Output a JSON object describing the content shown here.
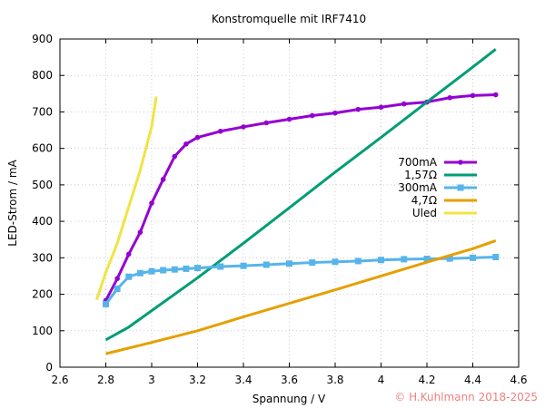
{
  "chart_data": {
    "type": "line",
    "title": "Konstromquelle mit IRF7410",
    "xlabel": "Spannung / V",
    "ylabel": "LED-Strom / mA",
    "xlim": [
      2.6,
      4.6
    ],
    "ylim": [
      0,
      900
    ],
    "xticks": [
      "2.6",
      "2.8",
      "3",
      "3.2",
      "3.4",
      "3.6",
      "3.8",
      "4",
      "4.2",
      "4.4",
      "4.6"
    ],
    "yticks": [
      "0",
      "100",
      "200",
      "300",
      "400",
      "500",
      "600",
      "700",
      "800",
      "900"
    ],
    "grid": true,
    "legend_position": "right",
    "series": [
      {
        "name": "700mA",
        "color": "#9400d3",
        "marker": "circle",
        "x": [
          2.8,
          2.85,
          2.9,
          2.95,
          3.0,
          3.05,
          3.1,
          3.15,
          3.2,
          3.3,
          3.4,
          3.5,
          3.6,
          3.7,
          3.8,
          3.9,
          4.0,
          4.1,
          4.2,
          4.3,
          4.4,
          4.5
        ],
        "y": [
          183,
          243,
          310,
          370,
          450,
          515,
          578,
          612,
          630,
          647,
          659,
          670,
          680,
          690,
          697,
          707,
          713,
          722,
          727,
          739,
          745,
          747
        ]
      },
      {
        "name": "1,57Ω",
        "color": "#009e73",
        "marker": "none",
        "x": [
          2.8,
          2.9,
          3.0,
          3.2,
          3.4,
          3.6,
          3.8,
          4.0,
          4.2,
          4.4,
          4.5
        ],
        "y": [
          75,
          110,
          155,
          245,
          340,
          437,
          535,
          630,
          727,
          823,
          872
        ]
      },
      {
        "name": "300mA",
        "color": "#56b4e9",
        "marker": "square",
        "x": [
          2.8,
          2.85,
          2.9,
          2.95,
          3.0,
          3.05,
          3.1,
          3.15,
          3.2,
          3.3,
          3.4,
          3.5,
          3.6,
          3.7,
          3.8,
          3.9,
          4.0,
          4.1,
          4.2,
          4.3,
          4.4,
          4.5
        ],
        "y": [
          173,
          215,
          248,
          258,
          263,
          266,
          268,
          270,
          272,
          276,
          278,
          281,
          284,
          287,
          289,
          291,
          294,
          296,
          297,
          298,
          300,
          302
        ]
      },
      {
        "name": "4,7Ω",
        "color": "#e69f00",
        "marker": "none",
        "x": [
          2.8,
          3.0,
          3.2,
          3.4,
          3.6,
          3.8,
          4.0,
          4.2,
          4.4,
          4.5
        ],
        "y": [
          37,
          68,
          100,
          138,
          175,
          212,
          250,
          288,
          325,
          347
        ]
      },
      {
        "name": "Uled",
        "color": "#f0e442",
        "marker": "none",
        "x": [
          2.76,
          2.8,
          2.85,
          2.9,
          2.95,
          3.0,
          3.02
        ],
        "y": [
          185,
          260,
          340,
          440,
          540,
          660,
          742
        ]
      }
    ]
  },
  "copyright": "© H.Kuhlmann 2018-2025",
  "copyright_color": "#f08080"
}
